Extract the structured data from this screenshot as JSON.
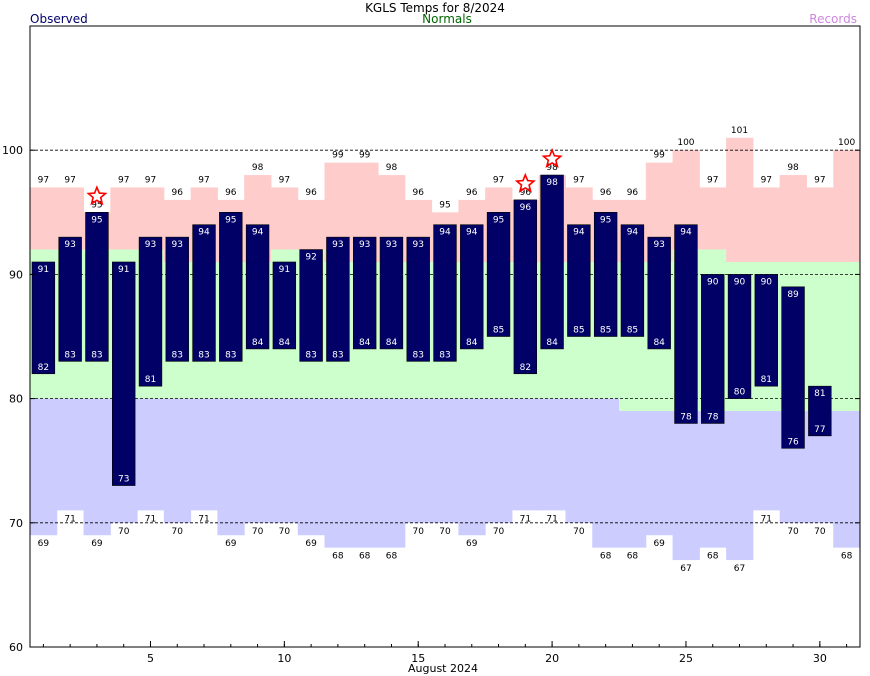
{
  "header": {
    "title": "KGLS Temps for 8/2024",
    "legend_observed": "Observed",
    "legend_normals": "Normals",
    "legend_records": "Records"
  },
  "colors": {
    "observed": "#000066",
    "normals_band": "#ccffcc",
    "records_high_band": "#ffcccc",
    "records_low_band": "#ccccff",
    "normals_text": "#006600",
    "records_text": "#cc88dd",
    "star": "#ff0000",
    "grid": "#000000"
  },
  "chart_data": {
    "type": "bar",
    "title": "KGLS Temps for 8/2024",
    "xlabel": "August 2024",
    "ylabel": "",
    "ylim": [
      60,
      110
    ],
    "yticks": [
      60,
      70,
      80,
      90,
      100
    ],
    "xticks": [
      5,
      10,
      15,
      20,
      25,
      30
    ],
    "grid_y": [
      70,
      80,
      90,
      100
    ],
    "days": [
      1,
      2,
      3,
      4,
      5,
      6,
      7,
      8,
      9,
      10,
      11,
      12,
      13,
      14,
      15,
      16,
      17,
      18,
      19,
      20,
      21,
      22,
      23,
      24,
      25,
      26,
      27,
      28,
      29,
      30,
      31
    ],
    "observed_high": [
      91,
      93,
      95,
      91,
      93,
      93,
      94,
      95,
      94,
      91,
      92,
      93,
      93,
      93,
      93,
      94,
      94,
      95,
      96,
      98,
      94,
      95,
      94,
      93,
      94,
      90,
      90,
      90,
      89,
      81,
      null
    ],
    "observed_low": [
      82,
      83,
      83,
      73,
      81,
      83,
      83,
      83,
      84,
      84,
      83,
      83,
      84,
      84,
      83,
      83,
      84,
      85,
      82,
      84,
      85,
      85,
      85,
      84,
      78,
      78,
      80,
      81,
      76,
      77,
      null
    ],
    "record_high": [
      97,
      97,
      95,
      97,
      97,
      96,
      97,
      96,
      98,
      97,
      96,
      99,
      99,
      98,
      96,
      95,
      96,
      97,
      96,
      98,
      97,
      96,
      96,
      99,
      100,
      97,
      101,
      97,
      98,
      97,
      100
    ],
    "record_low": [
      69,
      71,
      69,
      70,
      71,
      70,
      71,
      69,
      70,
      70,
      69,
      68,
      68,
      68,
      70,
      70,
      69,
      70,
      71,
      71,
      70,
      68,
      68,
      69,
      67,
      68,
      67,
      71,
      70,
      70,
      68
    ],
    "normal_high": [
      92,
      92,
      92,
      92,
      92,
      91,
      91,
      91,
      91,
      92,
      92,
      91,
      91,
      91,
      91,
      91,
      91,
      91,
      91,
      91,
      91,
      91,
      91,
      91,
      92,
      92,
      91,
      91,
      91,
      91,
      91
    ],
    "normal_low": [
      80,
      80,
      80,
      80,
      80,
      80,
      80,
      80,
      80,
      80,
      80,
      80,
      80,
      80,
      80,
      80,
      80,
      80,
      80,
      80,
      80,
      80,
      79,
      79,
      79,
      79,
      79,
      79,
      79,
      79,
      79
    ],
    "record_set_days": [
      3,
      19,
      20
    ]
  }
}
